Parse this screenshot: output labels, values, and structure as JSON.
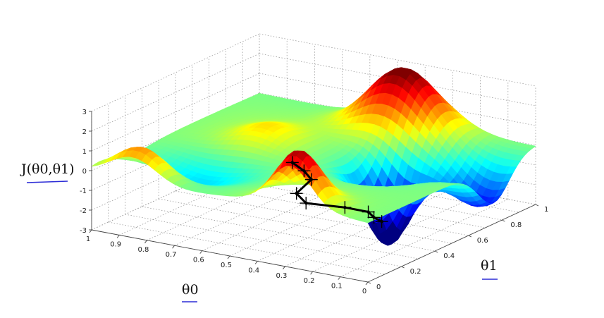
{
  "chart_data": {
    "type": "surface",
    "title": "",
    "xlabel": "θ0",
    "ylabel": "θ1",
    "zlabel": "J(θ0,θ1)",
    "xlim": [
      0,
      1
    ],
    "ylim": [
      0,
      1
    ],
    "zlim": [
      -3,
      3
    ],
    "x_ticks": [
      "1",
      "0.9",
      "0.8",
      "0.7",
      "0.6",
      "0.5",
      "0.4",
      "0.3",
      "0.2",
      "0.1",
      "0"
    ],
    "y_ticks": [
      "0",
      "0.2",
      "0.4",
      "0.6",
      "0.8",
      "1"
    ],
    "z_ticks": [
      "3",
      "2",
      "1",
      "0",
      "-1",
      "-2",
      "-3"
    ],
    "colormap": "jet",
    "grid": true,
    "label_underline_color": "#2b2bd6",
    "descent_path": {
      "color": "#000000",
      "points": [
        {
          "x": 0.31,
          "y": 0.06,
          "z": 2.0
        },
        {
          "x": 0.31,
          "y": 0.13,
          "z": 1.3
        },
        {
          "x": 0.32,
          "y": 0.19,
          "z": 0.6
        },
        {
          "x": 0.38,
          "y": 0.2,
          "z": -0.3
        },
        {
          "x": 0.4,
          "y": 0.29,
          "z": -1.2
        },
        {
          "x": 0.32,
          "y": 0.39,
          "z": -1.6
        },
        {
          "x": 0.29,
          "y": 0.48,
          "z": -2.1
        },
        {
          "x": 0.3,
          "y": 0.53,
          "z": -2.6
        },
        {
          "x": 0.29,
          "y": 0.56,
          "z": -2.9
        }
      ]
    }
  }
}
